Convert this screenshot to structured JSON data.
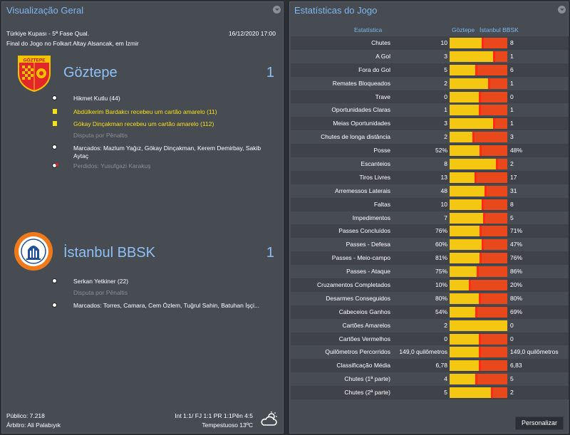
{
  "overview": {
    "title": "Visualização Geral",
    "competition": "Türkiye Kupası - 5ª Fase Qual.",
    "datetime": "16/12/2020 17:00",
    "venue": "Final do Jogo no Folkart Altay Alsancak, em İzmir",
    "home": {
      "name": "Göztepe",
      "score": "1",
      "crest_text": "GÖZTEPE",
      "colors": {
        "primary": "#e3262b",
        "secondary": "#f4c300"
      },
      "events": [
        {
          "type": "goal",
          "icon": "ball-icon",
          "text": "Hikmet Kutlu (44)",
          "style": "normal"
        },
        {
          "type": "yellow-card",
          "icon": "yellow-card-icon",
          "text": "Abdülkerim Bardakcı recebeu um cartão amarelo (11)",
          "style": "yellow"
        },
        {
          "type": "yellow-card",
          "icon": "yellow-card-icon",
          "text": "Gökay Dinçakman recebeu um cartão amarelo (112)",
          "style": "yellow"
        },
        {
          "type": "section",
          "icon": "",
          "text": "Disputa por Pênaltis",
          "style": "grey"
        },
        {
          "type": "penalty-scored",
          "icon": "ball-icon",
          "text": "Marcados: Mazlum Yağız, Gökay Dinçakman, Kerem Demirbay, Sakib Aytaç",
          "style": "normal"
        },
        {
          "type": "penalty-missed",
          "icon": "missed-ball-icon",
          "text": "Perdidos: Yusufgazi Karakuş",
          "style": "grey"
        }
      ]
    },
    "away": {
      "name": "İstanbul BBSK",
      "score": "1",
      "colors": {
        "primary": "#f07a1a",
        "secondary": "#1d4f9c"
      },
      "events": [
        {
          "type": "goal",
          "icon": "ball-icon",
          "text": "Serkan Yetkiner (22)",
          "style": "normal"
        },
        {
          "type": "section",
          "icon": "",
          "text": "Disputa por Pênaltis",
          "style": "grey"
        },
        {
          "type": "penalty-scored",
          "icon": "ball-icon",
          "text": "Marcados: Torres, Camara, Cem Özlem, Tuğrul Sahin, Batuhan İşçi...",
          "style": "normal"
        }
      ]
    },
    "footer": {
      "attendance": "Público: 7.218",
      "referee": "Árbitro: Ali Palabıyık",
      "ratings": "Int 1:1/ FJ 1:1 PR 1:1Pên 4:5",
      "weather": "Tempestuoso 13ºC",
      "weather_icon": "cloud-sun-icon"
    }
  },
  "stats": {
    "title": "Estatísticas do Jogo",
    "col_stat": "Estatística",
    "col_home": "Göztepe",
    "col_away": "İstanbul BBSK",
    "colors": {
      "home": "#f4c812",
      "away": "#e8481c"
    },
    "rows": [
      {
        "label": "Chutes",
        "home": "10",
        "away": "8",
        "home_share": 0.56
      },
      {
        "label": "A Gol",
        "home": "3",
        "away": "1",
        "home_share": 0.75
      },
      {
        "label": "Fora do Gol",
        "home": "5",
        "away": "6",
        "home_share": 0.45
      },
      {
        "label": "Remates Bloqueados",
        "home": "2",
        "away": "1",
        "home_share": 0.67
      },
      {
        "label": "Trave",
        "home": "0",
        "away": "0",
        "home_share": 0.5
      },
      {
        "label": "Oportunidades Claras",
        "home": "1",
        "away": "1",
        "home_share": 0.5
      },
      {
        "label": "Meias Oportunidades",
        "home": "3",
        "away": "1",
        "home_share": 0.75
      },
      {
        "label": "Chutes de longa distância",
        "home": "2",
        "away": "3",
        "home_share": 0.4
      },
      {
        "label": "Posse",
        "home": "52%",
        "away": "48%",
        "home_share": 0.52
      },
      {
        "label": "Escanteios",
        "home": "8",
        "away": "2",
        "home_share": 0.8
      },
      {
        "label": "Tiros Livres",
        "home": "13",
        "away": "17",
        "home_share": 0.43
      },
      {
        "label": "Arremessos Laterais",
        "home": "48",
        "away": "31",
        "home_share": 0.61
      },
      {
        "label": "Faltas",
        "home": "10",
        "away": "8",
        "home_share": 0.56
      },
      {
        "label": "Impedimentos",
        "home": "7",
        "away": "5",
        "home_share": 0.58
      },
      {
        "label": "Passes Concluídos",
        "home": "76%",
        "away": "71%",
        "home_share": 0.52
      },
      {
        "label": "Passes - Defesa",
        "home": "60%",
        "away": "47%",
        "home_share": 0.56
      },
      {
        "label": "Passes - Meio-campo",
        "home": "81%",
        "away": "76%",
        "home_share": 0.52
      },
      {
        "label": "Passes - Ataque",
        "home": "75%",
        "away": "86%",
        "home_share": 0.47
      },
      {
        "label": "Cruzamentos Completados",
        "home": "10%",
        "away": "20%",
        "home_share": 0.33
      },
      {
        "label": "Desarmes Conseguidos",
        "home": "80%",
        "away": "80%",
        "home_share": 0.5
      },
      {
        "label": "Cabeceios Ganhos",
        "home": "54%",
        "away": "69%",
        "home_share": 0.44
      },
      {
        "label": "Cartões Amarelos",
        "home": "2",
        "away": "0",
        "home_share": 1.0
      },
      {
        "label": "Cartões Vermelhos",
        "home": "0",
        "away": "0",
        "home_share": 0.5
      },
      {
        "label": "Quilômetros Percorridos",
        "home": "149,0 quilômetros",
        "away": "149,0 quilômetros",
        "home_share": 0.5
      },
      {
        "label": "Classificação Média",
        "home": "6,78",
        "away": "6,83",
        "home_share": 0.5
      },
      {
        "label": "Chutes (1ª parte)",
        "home": "4",
        "away": "5",
        "home_share": 0.44
      },
      {
        "label": "Chutes (2ª parte)",
        "home": "5",
        "away": "2",
        "home_share": 0.71
      }
    ],
    "customize_label": "Personalizar"
  }
}
